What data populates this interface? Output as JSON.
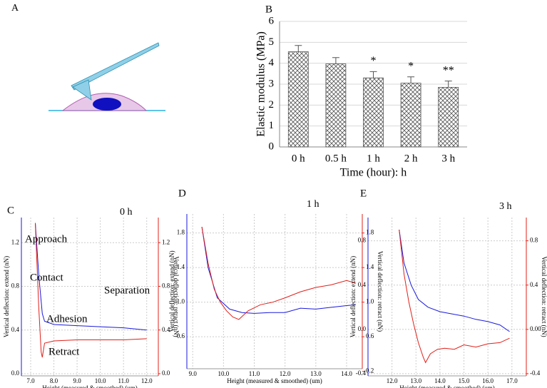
{
  "diagram": {
    "label": "A"
  },
  "chart_data": [
    {
      "type": "bar",
      "panel": "B",
      "ylabel": "Elastic modulus (MPa)",
      "xlabel": "Time (hour): h",
      "categories": [
        "0 h",
        "0.5 h",
        "1 h",
        "2 h",
        "3 h"
      ],
      "values": [
        4.55,
        3.97,
        3.3,
        3.05,
        2.85
      ],
      "errors": [
        0.3,
        0.3,
        0.3,
        0.3,
        0.3
      ],
      "significance": [
        null,
        null,
        "*",
        "*",
        "**"
      ],
      "ylim": [
        0,
        6
      ],
      "yticks": [
        0,
        1,
        2,
        3,
        4,
        5,
        6
      ],
      "grid": true,
      "color": "#555555"
    },
    {
      "type": "line",
      "panel": "C",
      "time_label": "0 h",
      "xlabel": "Height (measured & smoothed) (um)",
      "ylabel": "Vertical deflection: extend (nN)",
      "y2label": "Vertical deflection: retract (nN)",
      "annotations": [
        "Approach",
        "Contact",
        "Separation",
        "Adhesion",
        "Retract"
      ],
      "xlim": [
        6.6,
        12.5
      ],
      "xticks": [
        {
          "value": 7,
          "label": "7.0"
        },
        {
          "value": 8,
          "label": "8.0"
        },
        {
          "value": 9,
          "label": "9.0"
        },
        {
          "value": 10,
          "label": "10.0"
        },
        {
          "value": 11,
          "label": "11.0"
        },
        {
          "value": 12,
          "label": "12.0"
        }
      ],
      "ylim": [
        -0.02,
        1.43
      ],
      "yticks": [
        {
          "value": 0,
          "label": "0.0"
        },
        0.4,
        0.8,
        1.2
      ],
      "y2lim": [
        -0.02,
        1.43
      ],
      "y2ticks": [
        {
          "value": 0,
          "label": "0.0"
        },
        0.4,
        0.8,
        1.2
      ],
      "grid": true,
      "series": [
        {
          "color": "#1a1adb",
          "x": [
            7.2,
            7.35,
            7.5,
            7.6,
            8,
            9,
            10,
            11,
            12
          ],
          "values": [
            1.38,
            0.9,
            0.55,
            0.48,
            0.45,
            0.44,
            0.43,
            0.42,
            0.4
          ]
        },
        {
          "color": "#e0201a",
          "axis": "y2",
          "x": [
            7.2,
            7.35,
            7.45,
            7.5,
            7.6,
            8,
            9,
            10,
            11,
            12
          ],
          "values": [
            1.38,
            0.6,
            0.2,
            0.15,
            0.28,
            0.3,
            0.31,
            0.31,
            0.31,
            0.32
          ]
        }
      ]
    },
    {
      "type": "line",
      "panel": "D",
      "time_label": "1 h",
      "xlabel": "Height (measured & smoothed) (um)",
      "ylabel": "Vertical deflection: extend (nN)",
      "y2label": "Vertical deflection: retract (nN)",
      "xlim": [
        8.81,
        14.51
      ],
      "xticks": [
        {
          "value": 9,
          "label": "9.0"
        },
        {
          "value": 10,
          "label": "10.0"
        },
        {
          "value": 11,
          "label": "11.0"
        },
        {
          "value": 12,
          "label": "12.0"
        },
        {
          "value": 13,
          "label": "13.0"
        },
        {
          "value": 14,
          "label": "14.0"
        }
      ],
      "ylim": [
        0.23,
        2.02
      ],
      "yticks": [
        0.6,
        {
          "value": 1,
          "label": "1.0"
        },
        1.4,
        1.8
      ],
      "y2lim": [
        0.23,
        2.02
      ],
      "y2ticks": [
        0.2,
        0.6,
        {
          "value": 1,
          "label": "1.0"
        },
        1.4,
        1.8
      ],
      "grid": true,
      "series": [
        {
          "color": "#1a1adb",
          "x": [
            9.3,
            9.5,
            9.8,
            10.2,
            10.6,
            11,
            11.5,
            12,
            12.5,
            13,
            13.5,
            14,
            14.3
          ],
          "values": [
            1.87,
            1.4,
            1.05,
            0.92,
            0.88,
            0.87,
            0.88,
            0.88,
            0.93,
            0.92,
            0.94,
            0.96,
            0.97
          ]
        },
        {
          "color": "#e0201a",
          "axis": "y2",
          "x": [
            9.3,
            9.5,
            9.7,
            9.9,
            10.1,
            10.3,
            10.5,
            10.8,
            11.2,
            11.6,
            12,
            12.5,
            13,
            13.5,
            14,
            14.3
          ],
          "values": [
            1.87,
            1.45,
            1.15,
            1.0,
            0.9,
            0.83,
            0.8,
            0.9,
            0.97,
            1.0,
            1.05,
            1.12,
            1.17,
            1.2,
            1.25,
            1.22
          ]
        }
      ]
    },
    {
      "type": "line",
      "panel": "E",
      "time_label": "3 h",
      "xlabel": "Height (measured & smoothed) (um)",
      "ylabel": "Vertical deflection: extend (nN)",
      "y2label": "Vertical deflection: retract (nN)",
      "xlim": [
        11.0,
        17.6
      ],
      "xticks": [
        {
          "value": 12,
          "label": "12.0"
        },
        {
          "value": 13,
          "label": "13.0"
        },
        {
          "value": 14,
          "label": "14.0"
        },
        {
          "value": 15,
          "label": "15.0"
        },
        {
          "value": 16,
          "label": "16.0"
        },
        {
          "value": 17,
          "label": "17.0"
        }
      ],
      "ylim": [
        -0.42,
        1.01
      ],
      "yticks": [
        -0.4,
        {
          "value": 0,
          "label": "0.0"
        },
        0.4,
        0.8
      ],
      "y2lim": [
        -0.42,
        1.01
      ],
      "y2ticks": [
        -0.4,
        {
          "value": 0,
          "label": "0.00"
        },
        0.4,
        0.8
      ],
      "grid": true,
      "series": [
        {
          "color": "#1a1adb",
          "x": [
            12.3,
            12.5,
            12.8,
            13.1,
            13.5,
            14,
            14.5,
            15,
            15.5,
            16,
            16.5,
            16.9
          ],
          "values": [
            0.9,
            0.6,
            0.4,
            0.27,
            0.2,
            0.16,
            0.14,
            0.12,
            0.09,
            0.07,
            0.04,
            -0.02
          ]
        },
        {
          "color": "#e0201a",
          "axis": "y2",
          "x": [
            12.3,
            12.5,
            12.7,
            12.9,
            13.1,
            13.3,
            13.4,
            13.6,
            13.9,
            14.2,
            14.6,
            15,
            15.5,
            16,
            16.5,
            16.9
          ],
          "values": [
            0.9,
            0.5,
            0.25,
            0.05,
            -0.12,
            -0.25,
            -0.3,
            -0.22,
            -0.18,
            -0.17,
            -0.18,
            -0.14,
            -0.16,
            -0.13,
            -0.12,
            -0.08
          ]
        }
      ]
    }
  ]
}
